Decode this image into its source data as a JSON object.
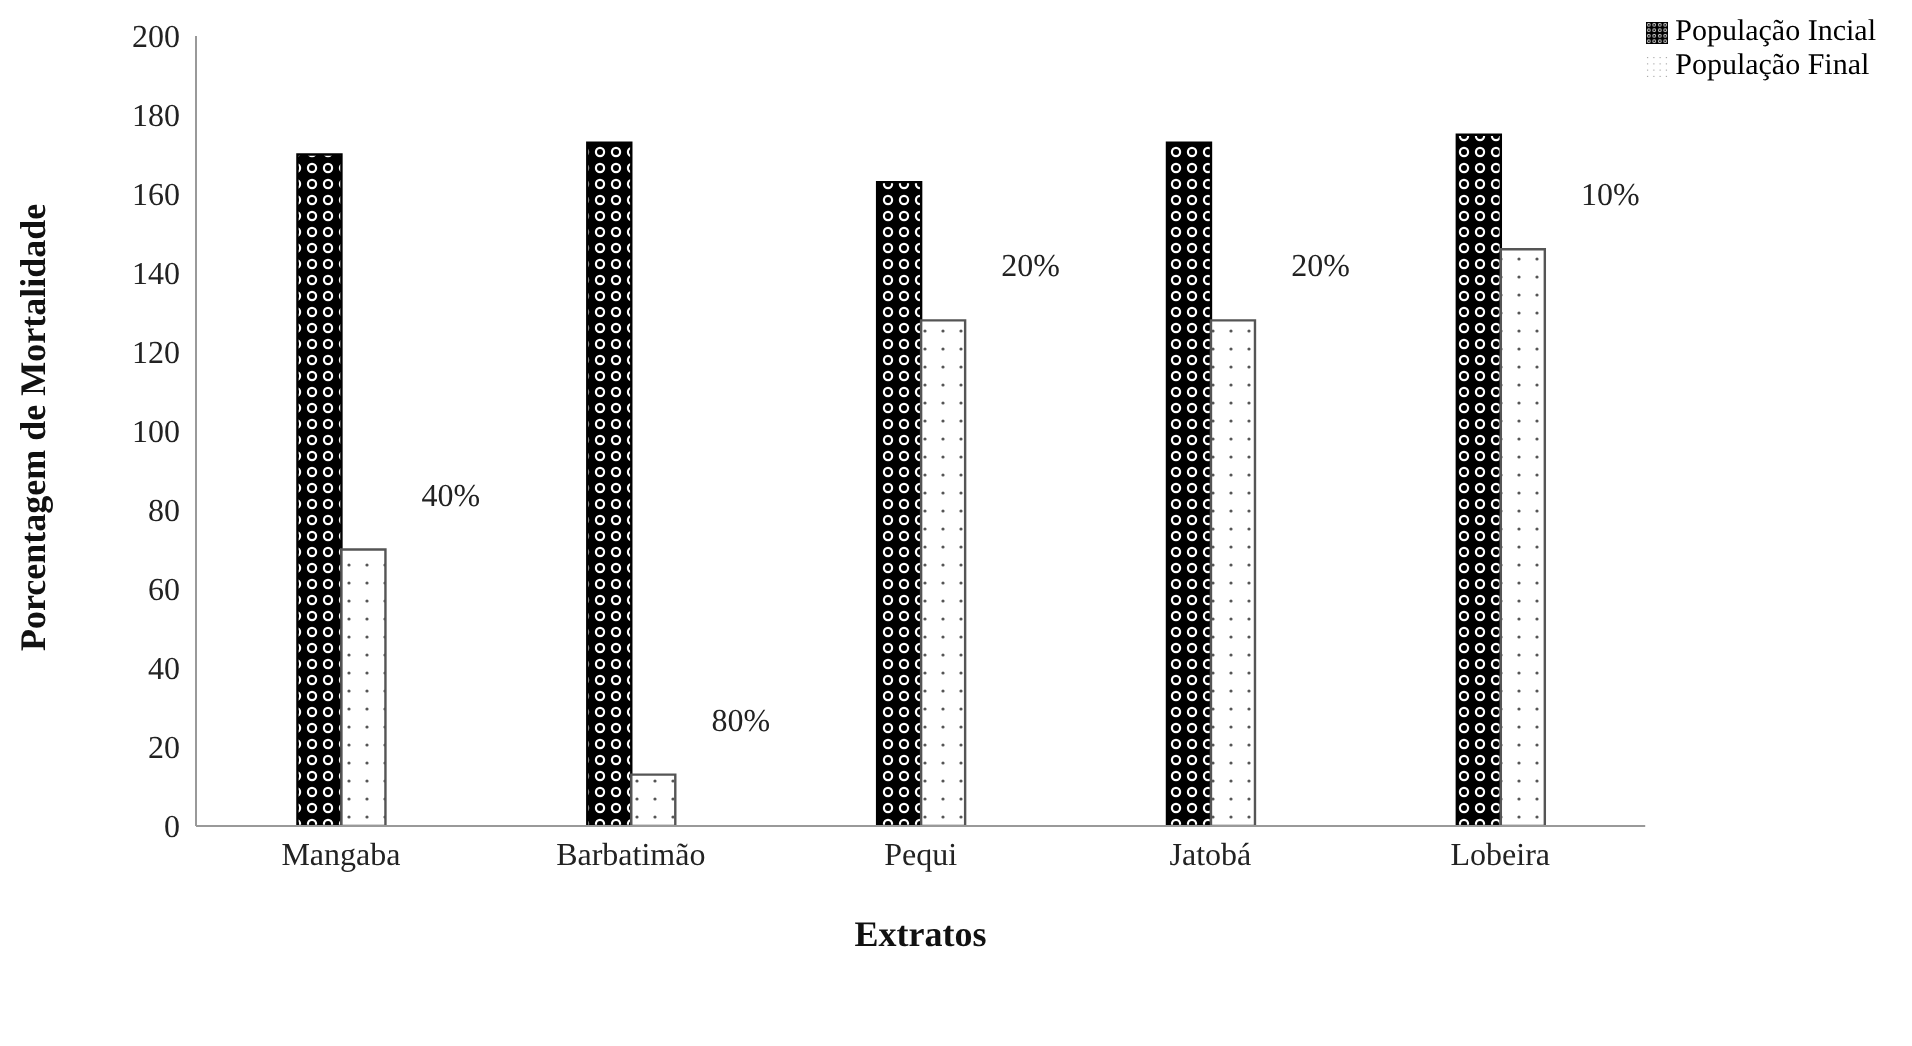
{
  "chart_data": {
    "type": "bar",
    "xlabel": "Extratos",
    "ylabel": "Porcentagem de Mortalidade",
    "categories": [
      "Mangaba",
      "Barbatimão",
      "Pequi",
      "Jatobá",
      "Lobeira"
    ],
    "series": [
      {
        "name": "População Incial",
        "color": "#000000",
        "values": [
          170,
          173,
          163,
          173,
          175
        ]
      },
      {
        "name": "População Final",
        "color": "#555555",
        "values": [
          70,
          13,
          128,
          128,
          146
        ]
      }
    ],
    "annotations": [
      {
        "text": "40%",
        "x": "Mangaba",
        "y": 70
      },
      {
        "text": "80%",
        "x": "Barbatimão",
        "y": 13
      },
      {
        "text": "20%",
        "x": "Pequi",
        "y": 128
      },
      {
        "text": "20%",
        "x": "Jatobá",
        "y": 128
      },
      {
        "text": "10%",
        "x": "Lobeira",
        "y": 146
      }
    ],
    "ylim": [
      0,
      200
    ],
    "yticks": [
      0,
      20,
      40,
      60,
      80,
      100,
      120,
      140,
      160,
      180,
      200
    ],
    "legend": "top right"
  }
}
